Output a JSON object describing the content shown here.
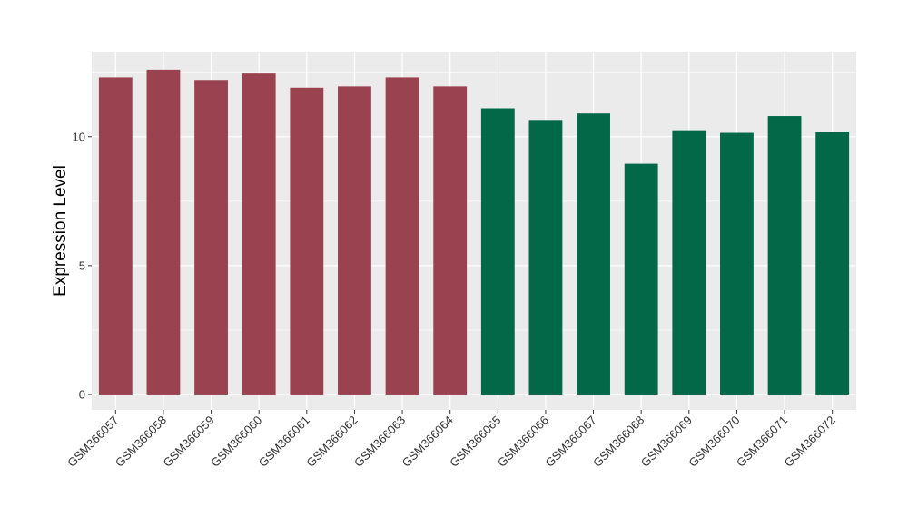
{
  "chart_data": {
    "type": "bar",
    "title": "",
    "xlabel": "",
    "ylabel": "Expression Level",
    "ylim": [
      -0.6,
      13.3
    ],
    "yticks": [
      0,
      5,
      10
    ],
    "grid": true,
    "categories": [
      "GSM366057",
      "GSM366058",
      "GSM366059",
      "GSM366060",
      "GSM366061",
      "GSM366062",
      "GSM366063",
      "GSM366064",
      "GSM366065",
      "GSM366066",
      "GSM366067",
      "GSM366068",
      "GSM366069",
      "GSM366070",
      "GSM366071",
      "GSM366072"
    ],
    "values": [
      12.3,
      12.6,
      12.2,
      12.45,
      11.9,
      11.95,
      12.3,
      11.95,
      11.1,
      10.65,
      10.9,
      8.95,
      10.25,
      10.15,
      10.8,
      10.2
    ],
    "groups": [
      1,
      1,
      1,
      1,
      1,
      1,
      1,
      1,
      2,
      2,
      2,
      2,
      2,
      2,
      2,
      2
    ],
    "colors": {
      "group1": "#9a4250",
      "group2": "#036848",
      "panel_background": "#ebebeb",
      "grid": "#ffffff"
    }
  }
}
